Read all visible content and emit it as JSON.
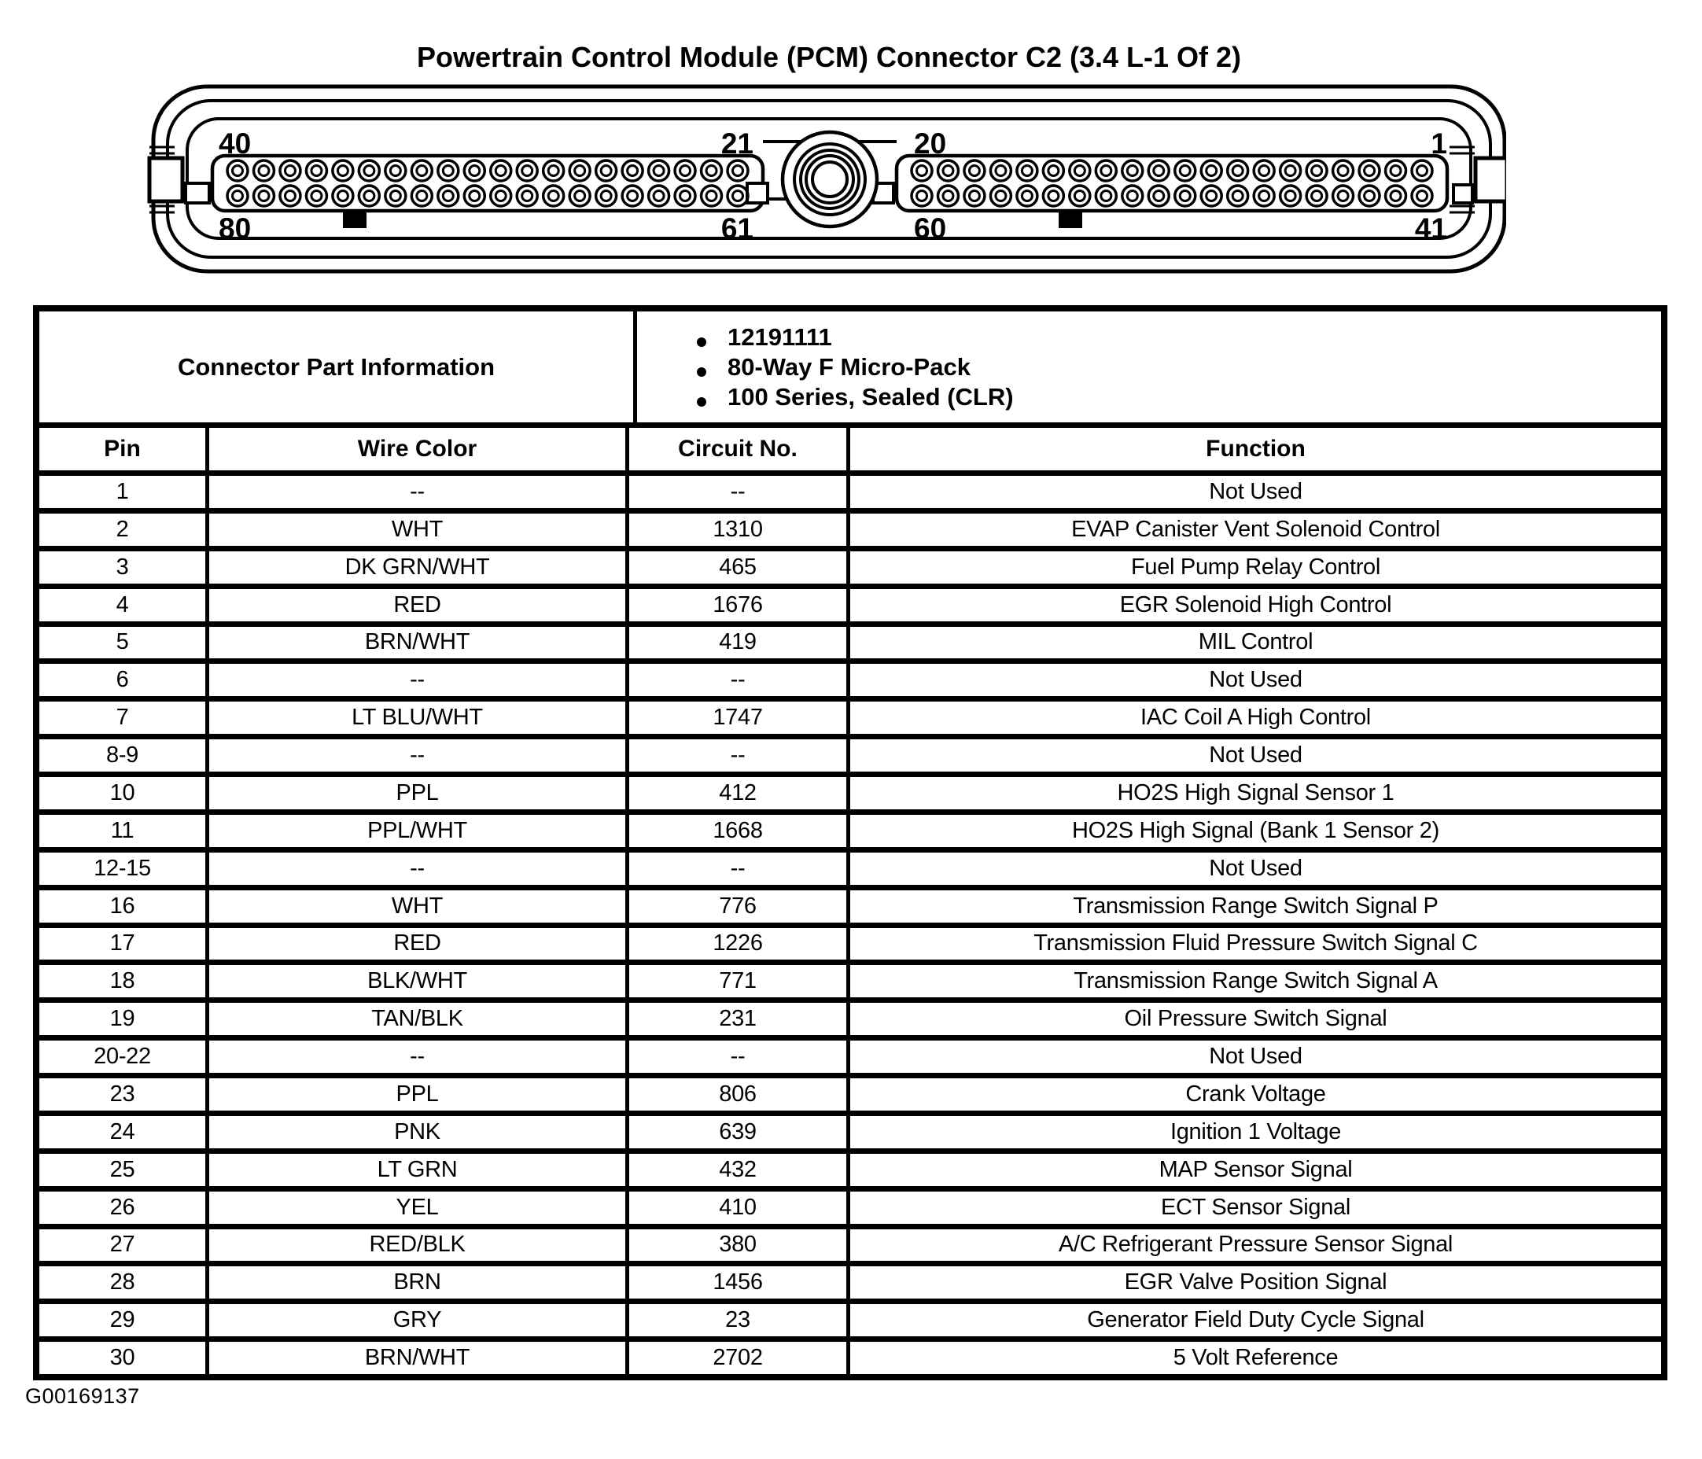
{
  "title": "Powertrain Control Module (PCM) Connector C2 (3.4 L-1 Of 2)",
  "figure_id": "G00169137",
  "connector": {
    "pins_per_row": 20,
    "pin_rows": 2,
    "left_block": {
      "top_left": "40",
      "top_right": "21",
      "bottom_left": "80",
      "bottom_right": "61"
    },
    "right_block": {
      "top_left": "20",
      "top_right": "1",
      "bottom_left": "60",
      "bottom_right": "41"
    }
  },
  "table": {
    "part_info_label": "Connector Part Information",
    "part_info_bullets": [
      "12191111",
      "80-Way F Micro-Pack",
      "100 Series, Sealed (CLR)"
    ],
    "columns": [
      "Pin",
      "Wire Color",
      "Circuit No.",
      "Function"
    ],
    "rows": [
      {
        "pin": "1",
        "wire_color": "--",
        "circuit_no": "--",
        "function": "Not Used"
      },
      {
        "pin": "2",
        "wire_color": "WHT",
        "circuit_no": "1310",
        "function": "EVAP Canister Vent Solenoid Control"
      },
      {
        "pin": "3",
        "wire_color": "DK GRN/WHT",
        "circuit_no": "465",
        "function": "Fuel Pump Relay Control"
      },
      {
        "pin": "4",
        "wire_color": "RED",
        "circuit_no": "1676",
        "function": "EGR Solenoid High Control"
      },
      {
        "pin": "5",
        "wire_color": "BRN/WHT",
        "circuit_no": "419",
        "function": "MIL Control"
      },
      {
        "pin": "6",
        "wire_color": "--",
        "circuit_no": "--",
        "function": "Not Used"
      },
      {
        "pin": "7",
        "wire_color": "LT BLU/WHT",
        "circuit_no": "1747",
        "function": "IAC Coil A High Control"
      },
      {
        "pin": "8-9",
        "wire_color": "--",
        "circuit_no": "--",
        "function": "Not Used"
      },
      {
        "pin": "10",
        "wire_color": "PPL",
        "circuit_no": "412",
        "function": "HO2S High Signal Sensor 1"
      },
      {
        "pin": "11",
        "wire_color": "PPL/WHT",
        "circuit_no": "1668",
        "function": "HO2S High Signal (Bank 1 Sensor 2)"
      },
      {
        "pin": "12-15",
        "wire_color": "--",
        "circuit_no": "--",
        "function": "Not Used"
      },
      {
        "pin": "16",
        "wire_color": "WHT",
        "circuit_no": "776",
        "function": "Transmission Range Switch Signal P"
      },
      {
        "pin": "17",
        "wire_color": "RED",
        "circuit_no": "1226",
        "function": "Transmission Fluid Pressure Switch Signal C"
      },
      {
        "pin": "18",
        "wire_color": "BLK/WHT",
        "circuit_no": "771",
        "function": "Transmission Range Switch Signal A"
      },
      {
        "pin": "19",
        "wire_color": "TAN/BLK",
        "circuit_no": "231",
        "function": "Oil Pressure Switch Signal"
      },
      {
        "pin": "20-22",
        "wire_color": "--",
        "circuit_no": "--",
        "function": "Not Used"
      },
      {
        "pin": "23",
        "wire_color": "PPL",
        "circuit_no": "806",
        "function": "Crank Voltage"
      },
      {
        "pin": "24",
        "wire_color": "PNK",
        "circuit_no": "639",
        "function": "Ignition 1 Voltage"
      },
      {
        "pin": "25",
        "wire_color": "LT GRN",
        "circuit_no": "432",
        "function": "MAP Sensor Signal"
      },
      {
        "pin": "26",
        "wire_color": "YEL",
        "circuit_no": "410",
        "function": "ECT Sensor Signal"
      },
      {
        "pin": "27",
        "wire_color": "RED/BLK",
        "circuit_no": "380",
        "function": "A/C Refrigerant Pressure Sensor Signal"
      },
      {
        "pin": "28",
        "wire_color": "BRN",
        "circuit_no": "1456",
        "function": "EGR Valve Position Signal"
      },
      {
        "pin": "29",
        "wire_color": "GRY",
        "circuit_no": "23",
        "function": "Generator Field Duty Cycle Signal"
      },
      {
        "pin": "30",
        "wire_color": "BRN/WHT",
        "circuit_no": "2702",
        "function": "5 Volt Reference"
      }
    ]
  }
}
